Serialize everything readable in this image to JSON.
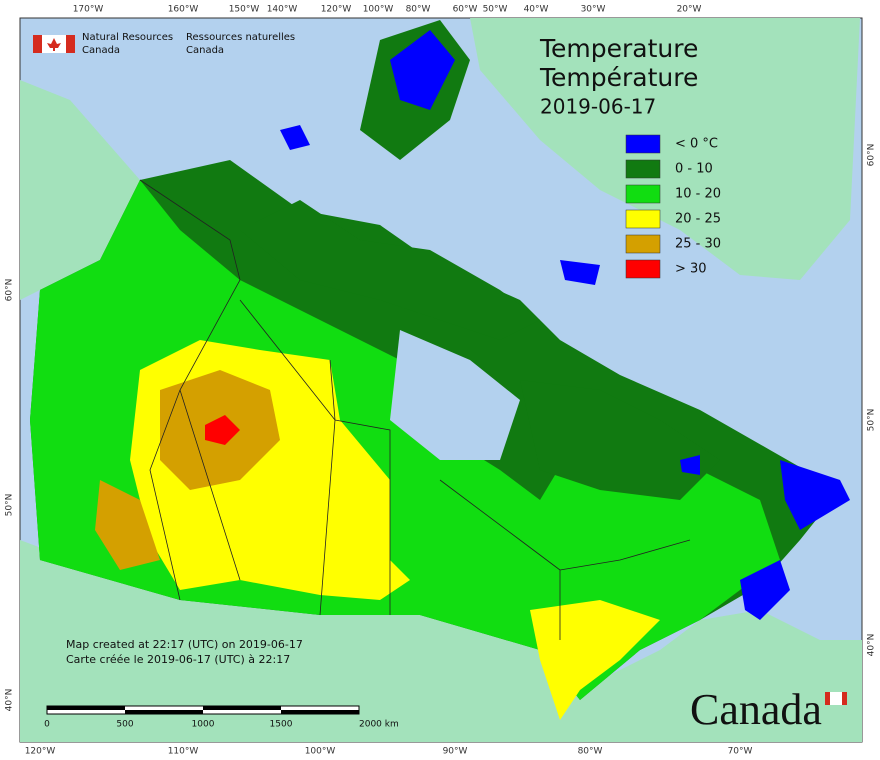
{
  "header": {
    "agency_en": [
      "Natural Resources",
      "Canada"
    ],
    "agency_fr": [
      "Ressources naturelles",
      "Canada"
    ]
  },
  "title": {
    "en": "Temperature",
    "fr": "Température",
    "date": "2019-06-17"
  },
  "legend": [
    {
      "label": "< 0 °C",
      "color": "#0000ff"
    },
    {
      "label": "0 - 10",
      "color": "#117a11"
    },
    {
      "label": "10 - 20",
      "color": "#11dd11"
    },
    {
      "label": "20 - 25",
      "color": "#ffff00"
    },
    {
      "label": "25 - 30",
      "color": "#d4a000"
    },
    {
      "label": "> 30",
      "color": "#ff0000"
    }
  ],
  "notes": [
    "Map created at 22:17 (UTC) on 2019-06-17",
    "Carte créée le 2019-06-17 (UTC) à 22:17"
  ],
  "scale_bar": [
    "0",
    "500",
    "1000",
    "1500",
    "2000 km"
  ],
  "graticule": {
    "top": [
      "170°W",
      "160°W",
      "150°W",
      "140°W",
      "120°W",
      "100°W",
      "80°W",
      "60°W",
      "50°W",
      "40°W",
      "30°W",
      "20°W"
    ],
    "bottom": [
      "120°W",
      "110°W",
      "100°W",
      "90°W",
      "80°W",
      "70°W"
    ],
    "left": [
      "60°N",
      "50°N",
      "40°N"
    ],
    "right": [
      "60°N",
      "50°N",
      "40°N"
    ]
  },
  "wordmark": "Canada"
}
